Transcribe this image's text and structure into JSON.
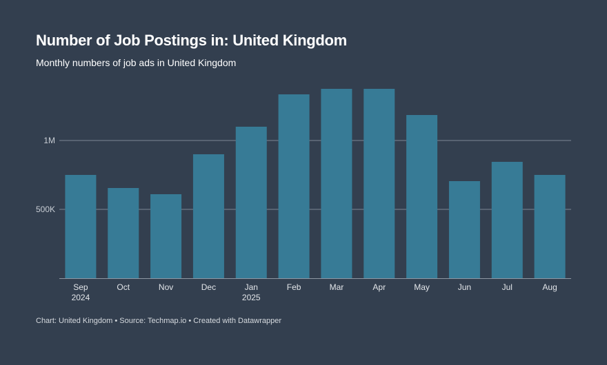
{
  "header": {
    "title": "Number of Job Postings in: United Kingdom",
    "subtitle": "Monthly numbers of job ads in United Kingdom"
  },
  "footer": {
    "text": "Chart: United Kingdom • Source: Techmap.io • Created with Datawrapper"
  },
  "colors": {
    "background": "#333f4f",
    "bar": "#377b96",
    "gridline": "#7d8794",
    "axis": "#8e97a3"
  },
  "chart_data": {
    "type": "bar",
    "categories": [
      "Sep",
      "Oct",
      "Nov",
      "Dec",
      "Jan",
      "Feb",
      "Mar",
      "Apr",
      "May",
      "Jun",
      "Jul",
      "Aug"
    ],
    "category_sublabels": [
      "2024",
      "",
      "",
      "",
      "2025",
      "",
      "",
      "",
      "",
      "",
      "",
      ""
    ],
    "values": [
      750000,
      655000,
      610000,
      900000,
      1100000,
      1335000,
      1375000,
      1375000,
      1185000,
      705000,
      845000,
      750000
    ],
    "ylim": [
      0,
      1500000
    ],
    "yticks": [
      {
        "value": 500000,
        "label": "500K"
      },
      {
        "value": 1000000,
        "label": "1M"
      }
    ],
    "grid": true,
    "title": "Number of Job Postings in: United Kingdom",
    "xlabel": "",
    "ylabel": ""
  }
}
